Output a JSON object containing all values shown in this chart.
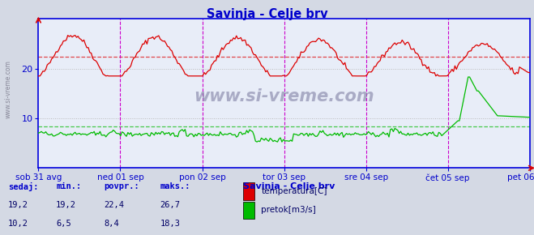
{
  "title": "Savinja - Celje brv",
  "title_color": "#0000cc",
  "bg_color": "#d4d9e4",
  "plot_bg_color": "#e8edf8",
  "border_color": "#0000dd",
  "watermark": "www.si-vreme.com",
  "xlabel_color": "#0000cc",
  "ylabel_color": "#0000cc",
  "temp_color": "#dd0000",
  "flow_color": "#00bb00",
  "avg_temp_color": "#dd0000",
  "avg_flow_color": "#00bb00",
  "avg_temp": 22.4,
  "avg_flow": 8.4,
  "temp_min": 19.2,
  "temp_max": 26.7,
  "temp_cur": 19.2,
  "flow_min": 6.5,
  "flow_max": 18.3,
  "flow_cur": 10.2,
  "ymin": 0,
  "ymax": 30,
  "yticks": [
    10,
    20
  ],
  "x_labels": [
    "sob 31 avg",
    "ned 01 sep",
    "pon 02 sep",
    "tor 03 sep",
    "sre 04 sep",
    "čet 05 sep",
    "pet 06 sep"
  ],
  "n_points": 336,
  "legend_title": "Savinja - Celje brv",
  "legend_items": [
    {
      "label": "temperatura[C]",
      "color": "#dd0000"
    },
    {
      "label": "pretok[m3/s]",
      "color": "#00bb00"
    }
  ],
  "table_headers": [
    "sedaj:",
    "min.:",
    "povpr.:",
    "maks.:"
  ],
  "table_row1": [
    "19,2",
    "19,2",
    "22,4",
    "26,7"
  ],
  "table_row2": [
    "10,2",
    "6,5",
    "8,4",
    "18,3"
  ],
  "vline_color": "#cc00cc",
  "grid_color": "#bbbbbb",
  "wm_color": "#8888aa"
}
